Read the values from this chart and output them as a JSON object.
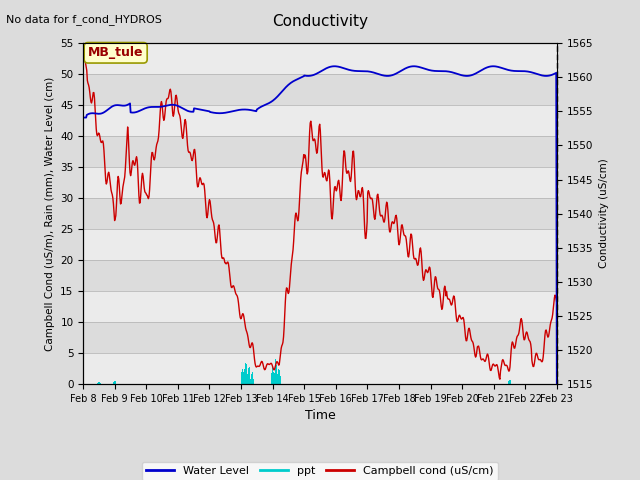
{
  "title": "Conductivity",
  "top_left_text": "No data for f_cond_HYDROS",
  "station_label": "MB_tule",
  "xlabel": "Time",
  "ylabel_left": "Campbell Cond (uS/m), Rain (mm), Water Level (cm)",
  "ylabel_right": "Conductivity (uS/cm)",
  "ylim_left": [
    0,
    55
  ],
  "ylim_right": [
    1515,
    1565
  ],
  "yticks_left": [
    0,
    5,
    10,
    15,
    20,
    25,
    30,
    35,
    40,
    45,
    50,
    55
  ],
  "yticks_right": [
    1515,
    1520,
    1525,
    1530,
    1535,
    1540,
    1545,
    1550,
    1555,
    1560,
    1565
  ],
  "xtick_labels": [
    "Feb 8",
    "Feb 9",
    "Feb 10",
    "Feb 11",
    "Feb 12",
    "Feb 13",
    "Feb 14",
    "Feb 15",
    "Feb 16",
    "Feb 17",
    "Feb 18",
    "Feb 19",
    "Feb 20",
    "Feb 21",
    "Feb 22",
    "Feb 23"
  ],
  "background_color": "#dcdcdc",
  "plot_bg_color": "#dcdcdc",
  "stripe_color": "#ebebeb",
  "water_level_color": "#0000cc",
  "ppt_color": "#00cccc",
  "campbell_color": "#cc0000",
  "legend_entries": [
    "Water Level",
    "ppt",
    "Campbell cond (uS/cm)"
  ]
}
